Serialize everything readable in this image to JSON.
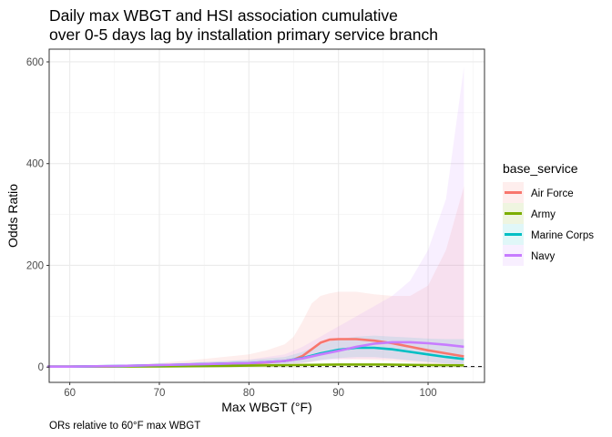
{
  "chart_data": {
    "type": "line",
    "title_line1": "Daily max WBGT and HSI association cumulative",
    "title_line2": "over 0-5 days lag by installation primary service branch",
    "xlabel": "Max WBGT (°F)",
    "ylabel": "Odds Ratio",
    "caption": "ORs relative to 60°F max WBGT",
    "xlim": [
      57.7,
      106.3
    ],
    "ylim": [
      -30,
      625
    ],
    "x_ticks": [
      60,
      70,
      80,
      90,
      100
    ],
    "y_ticks": [
      0,
      200,
      400,
      600
    ],
    "x_tick_labels": [
      "60",
      "70",
      "80",
      "90",
      "100"
    ],
    "y_tick_labels": [
      "0",
      "200",
      "400",
      "600"
    ],
    "reference_line": 1,
    "grid": true,
    "legend": {
      "title": "base_service",
      "position": "right"
    },
    "series": [
      {
        "name": "Air Force",
        "color": "#F8766D",
        "x": [
          57.5,
          60,
          65,
          70,
          75,
          80,
          82,
          84,
          85,
          86,
          87,
          88,
          89,
          90,
          92,
          94,
          96,
          98,
          100,
          102,
          104
        ],
        "y": [
          1,
          1,
          1.5,
          3,
          5,
          7,
          9,
          12,
          15,
          22,
          35,
          48,
          54,
          55,
          55,
          52,
          47,
          40,
          33,
          27,
          21
        ],
        "lower": [
          1,
          1,
          0.8,
          1,
          1.5,
          2,
          3,
          4,
          5,
          7,
          10,
          14,
          16,
          16,
          15,
          14,
          12,
          9,
          6,
          4,
          2
        ],
        "upper": [
          1,
          1,
          3,
          8,
          16,
          25,
          33,
          45,
          60,
          90,
          125,
          140,
          145,
          148,
          148,
          143,
          140,
          140,
          160,
          230,
          355
        ]
      },
      {
        "name": "Army",
        "color": "#7CAE00",
        "x": [
          57.5,
          60,
          65,
          70,
          75,
          80,
          85,
          90,
          95,
          100,
          104
        ],
        "y": [
          1,
          1,
          1.2,
          1.5,
          2,
          3,
          4,
          5,
          5,
          4,
          3.5
        ],
        "lower": [
          1,
          1,
          1,
          1.2,
          1.6,
          2.4,
          3.2,
          4,
          3.8,
          3,
          2.5
        ],
        "upper": [
          1,
          1,
          1.5,
          2,
          2.6,
          4,
          5,
          6.5,
          6.5,
          5.5,
          5
        ]
      },
      {
        "name": "Marine Corps",
        "color": "#00BFC4",
        "x": [
          57.5,
          60,
          65,
          70,
          75,
          80,
          84,
          86,
          88,
          90,
          92,
          94,
          96,
          98,
          100,
          102,
          104
        ],
        "y": [
          1,
          1,
          2,
          4,
          6,
          8,
          12,
          18,
          27,
          34,
          38,
          38,
          35,
          30,
          25,
          20,
          16
        ],
        "lower": [
          1,
          1,
          1,
          2,
          3,
          4,
          6,
          9,
          14,
          18,
          20,
          20,
          17,
          13,
          10,
          7,
          5
        ],
        "upper": [
          1,
          1,
          3,
          6,
          10,
          14,
          20,
          30,
          45,
          55,
          60,
          62,
          60,
          58,
          56,
          55,
          55
        ]
      },
      {
        "name": "Navy",
        "color": "#C77CFF",
        "x": [
          57.5,
          60,
          65,
          70,
          75,
          80,
          84,
          86,
          88,
          90,
          92,
          94,
          96,
          98,
          100,
          102,
          104
        ],
        "y": [
          1,
          1,
          2,
          4,
          6,
          8,
          12,
          17,
          25,
          32,
          40,
          46,
          49,
          49,
          47,
          44,
          40
        ],
        "lower": [
          1,
          1,
          1,
          2,
          3,
          4,
          6,
          8,
          12,
          15,
          17,
          17,
          16,
          13,
          10,
          7,
          5
        ],
        "upper": [
          1,
          1,
          3,
          6,
          10,
          15,
          25,
          40,
          60,
          80,
          100,
          120,
          140,
          170,
          230,
          330,
          590
        ]
      }
    ]
  }
}
